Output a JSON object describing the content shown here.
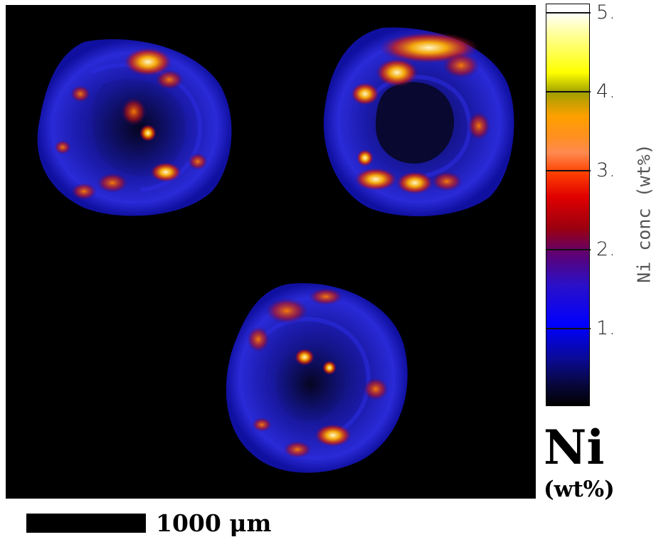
{
  "colorbar": {
    "ticks": [
      "1.",
      "2.",
      "3.",
      "4.",
      "5."
    ],
    "title": "Ni conc (wt%)"
  },
  "element_label": "Ni",
  "unit_label": "(wt%)",
  "scale_bar": {
    "label": "1000 μm"
  },
  "colors": {
    "background": "#000000",
    "low": "#0a0a8a",
    "mid": "#ff3000",
    "high": "#fff3c0"
  }
}
